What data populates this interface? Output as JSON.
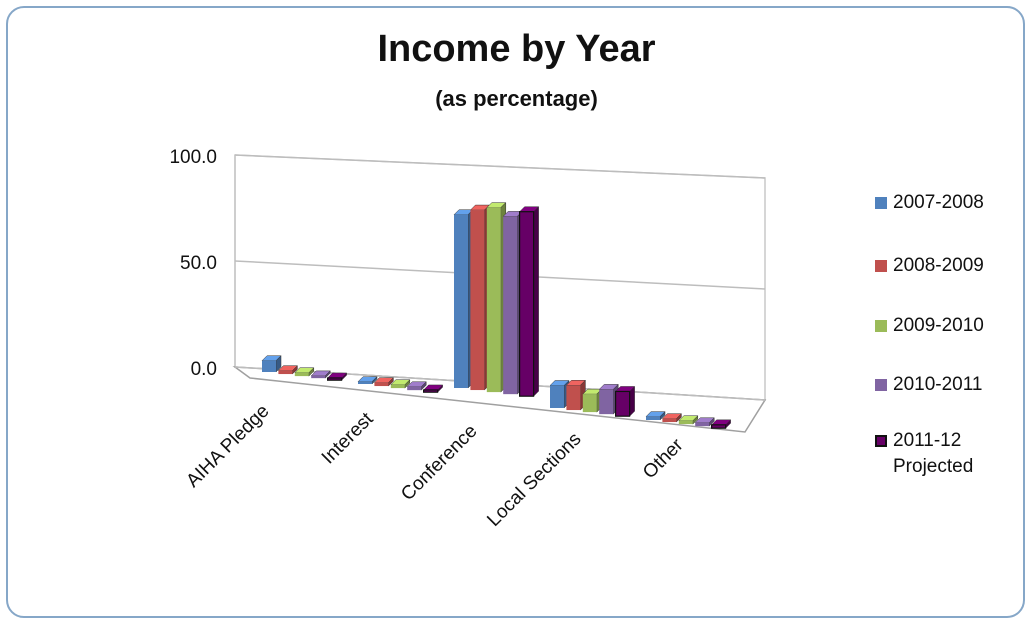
{
  "chart_data": {
    "type": "bar",
    "title": "Income by Year",
    "subtitle": "(as percentage)",
    "categories": [
      "AIHA Pledge",
      "Interest",
      "Conference",
      "Local Sections",
      "Other"
    ],
    "series": [
      {
        "name": "2007-2008",
        "color": "#4f81bd",
        "values": [
          5.0,
          1.0,
          77.0,
          10.0,
          1.5
        ]
      },
      {
        "name": "2008-2009",
        "color": "#c0504d",
        "values": [
          1.5,
          1.5,
          80.0,
          11.0,
          1.5
        ]
      },
      {
        "name": "2009-2010",
        "color": "#9bbb59",
        "values": [
          1.5,
          1.5,
          82.0,
          8.0,
          1.5
        ]
      },
      {
        "name": "2010-2011",
        "color": "#8064a2",
        "values": [
          1.0,
          1.5,
          79.0,
          11.0,
          1.5
        ]
      },
      {
        "name": "2011-12\nProjected",
        "color": "#660066",
        "values": [
          1.0,
          1.0,
          82.0,
          11.0,
          1.5
        ]
      }
    ],
    "y_ticks": [
      "0.0",
      "50.0",
      "100.0"
    ],
    "ylim": [
      0,
      100
    ],
    "grid": true,
    "legend": "right",
    "style": "3d-clustered-column"
  }
}
